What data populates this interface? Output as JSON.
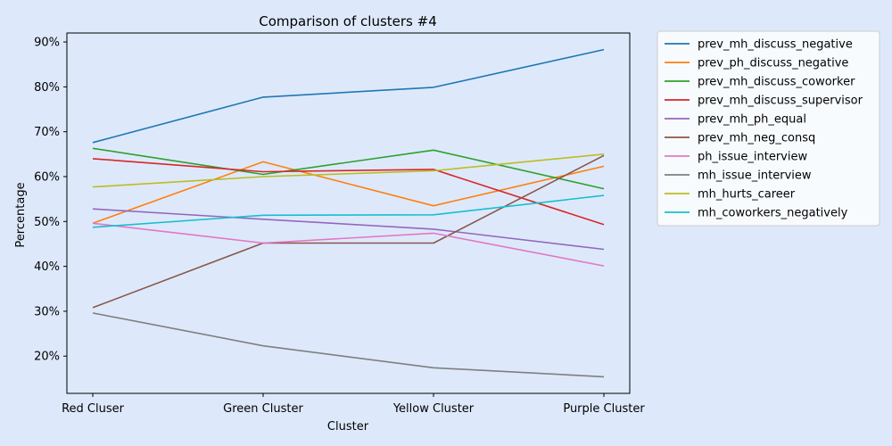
{
  "chart_data": {
    "type": "line",
    "title": "Comparison of clusters #4",
    "xlabel": "Cluster",
    "ylabel": "Percentage",
    "categories": [
      "Red Cluser",
      "Green Cluster",
      "Yellow Cluster",
      "Purple Cluster"
    ],
    "ylim": [
      11.7,
      92
    ],
    "yticks": [
      20,
      30,
      40,
      50,
      60,
      70,
      80,
      90
    ],
    "ytick_suffix": "%",
    "grid": false,
    "legend_position": "outside-right",
    "colors": {
      "background": "#dde9fb",
      "plot_background": "#dde9fb"
    },
    "series": [
      {
        "name": "prev_mh_discuss_negative",
        "color": "#1f77b4",
        "values": [
          67.6,
          77.7,
          79.9,
          88.3
        ]
      },
      {
        "name": "prev_ph_discuss_negative",
        "color": "#ff7f0e",
        "values": [
          49.6,
          63.3,
          53.5,
          62.3
        ]
      },
      {
        "name": "prev_mh_discuss_coworker",
        "color": "#2ca02c",
        "values": [
          66.3,
          60.5,
          65.9,
          57.3
        ]
      },
      {
        "name": "prev_mh_discuss_supervisor",
        "color": "#d62728",
        "values": [
          64.0,
          61.1,
          61.6,
          49.3
        ]
      },
      {
        "name": "prev_mh_ph_equal",
        "color": "#9467bd",
        "values": [
          52.8,
          50.5,
          48.3,
          43.8
        ]
      },
      {
        "name": "prev_mh_neg_consq",
        "color": "#8c564b",
        "values": [
          30.8,
          45.2,
          45.2,
          64.7
        ]
      },
      {
        "name": "ph_issue_interview",
        "color": "#e377c2",
        "values": [
          49.6,
          45.2,
          47.4,
          40.1
        ]
      },
      {
        "name": "mh_issue_interview",
        "color": "#7f7f7f",
        "values": [
          29.6,
          22.3,
          17.4,
          15.4
        ]
      },
      {
        "name": "mh_hurts_career",
        "color": "#bcbd22",
        "values": [
          57.7,
          60.0,
          61.3,
          65.0
        ]
      },
      {
        "name": "mh_coworkers_negatively",
        "color": "#17becf",
        "values": [
          48.7,
          51.4,
          51.5,
          55.8
        ]
      }
    ]
  }
}
